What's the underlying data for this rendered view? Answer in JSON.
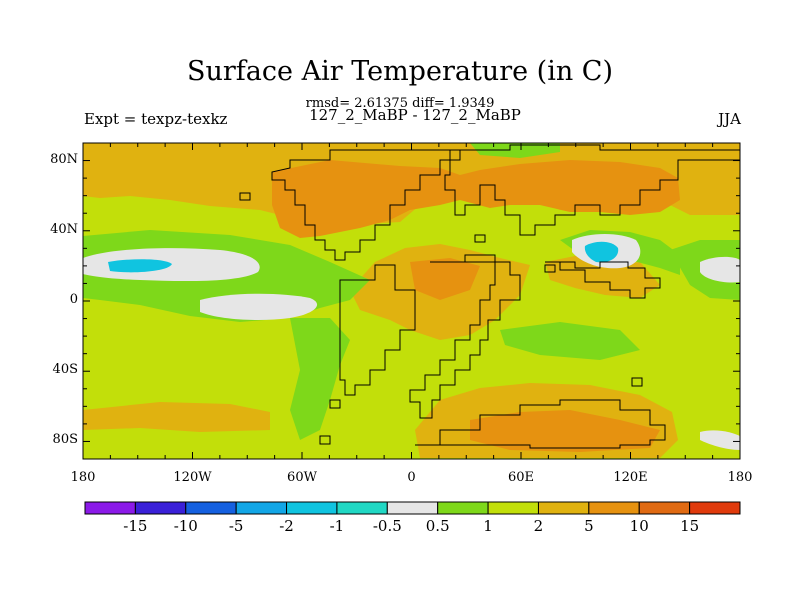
{
  "title": "Surface Air Temperature (in C)",
  "subtitle": "rmsd= 2.61375 diff= 1.9349",
  "left_label": "Expt = texpz-texkz",
  "center_label": "127_2_MaBP - 127_2_MaBP",
  "right_label": "JJA",
  "axes": {
    "lat_ticks": [
      {
        "value": 80,
        "label": "80N"
      },
      {
        "value": 40,
        "label": "40N"
      },
      {
        "value": 0,
        "label": "0"
      },
      {
        "value": -40,
        "label": "40S"
      },
      {
        "value": -80,
        "label": "80S"
      }
    ],
    "lon_ticks": [
      {
        "value": -180,
        "label": "180"
      },
      {
        "value": -120,
        "label": "120W"
      },
      {
        "value": -60,
        "label": "60W"
      },
      {
        "value": 0,
        "label": "0"
      },
      {
        "value": 60,
        "label": "60E"
      },
      {
        "value": 120,
        "label": "120E"
      },
      {
        "value": 180,
        "label": "180"
      }
    ],
    "lon_range": [
      -180,
      180
    ],
    "lat_range": [
      -90,
      90
    ]
  },
  "colorbar": {
    "colors": [
      "#8b1ae8",
      "#3a20d8",
      "#1560e0",
      "#12a6e6",
      "#10c4e0",
      "#20d8c4",
      "#e6e6e6",
      "#7ed81a",
      "#c2df0a",
      "#e0b210",
      "#e69210",
      "#e06a12",
      "#e03a0c"
    ],
    "labels": [
      "-15",
      "-10",
      "-5",
      "-2",
      "-1",
      "-0.5",
      "0.5",
      "1",
      "2",
      "5",
      "10",
      "15"
    ]
  }
}
